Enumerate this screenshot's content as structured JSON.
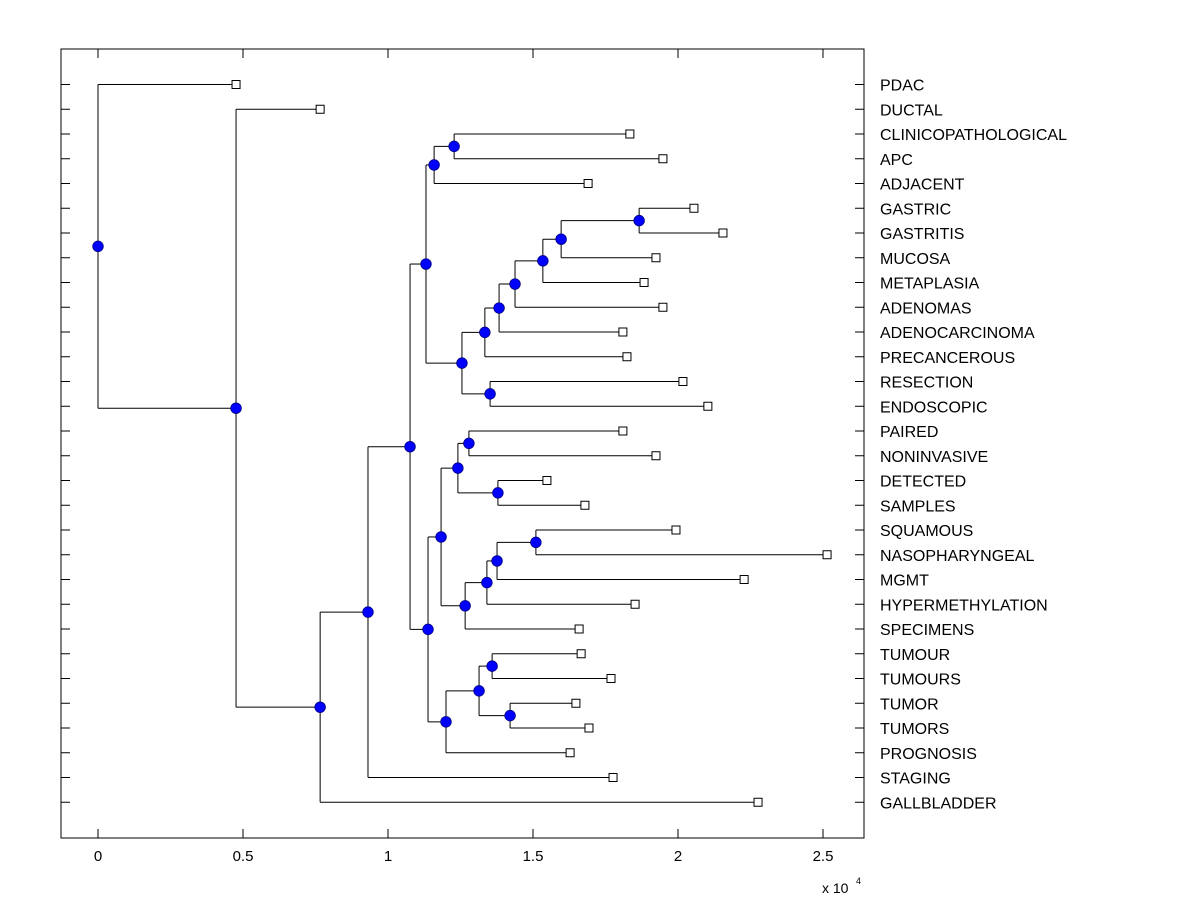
{
  "chart_data": {
    "type": "dendrogram",
    "title": "",
    "xlabel": "",
    "ylabel": "",
    "x_scale_label": "x 10",
    "x_scale_exponent": "4",
    "xlim": [
      -0.13,
      2.63
    ],
    "xticks": [
      0,
      0.5,
      1,
      1.5,
      2,
      2.5
    ],
    "xtick_labels": [
      "0",
      "0.5",
      "1",
      "1.5",
      "2",
      "2.5"
    ],
    "grid": false,
    "legend": "none",
    "colors": {
      "node_fill": "#0000ff",
      "node_stroke": "#000080",
      "line": "#000000",
      "leaf_fill": "#ffffff"
    },
    "leaves": [
      {
        "label": "PDAC",
        "value": 0.476
      },
      {
        "label": "DUCTAL",
        "value": 0.766
      },
      {
        "label": "CLINICOPATHOLOGICAL",
        "value": 1.834
      },
      {
        "label": "APC",
        "value": 1.948
      },
      {
        "label": "ADJACENT",
        "value": 1.69
      },
      {
        "label": "GASTRIC",
        "value": 2.055
      },
      {
        "label": "GASTRITIS",
        "value": 2.155
      },
      {
        "label": "MUCOSA",
        "value": 1.924
      },
      {
        "label": "METAPLASIA",
        "value": 1.883
      },
      {
        "label": "ADENOMAS",
        "value": 1.948
      },
      {
        "label": "ADENOCARCINOMA",
        "value": 1.81
      },
      {
        "label": "PRECANCEROUS",
        "value": 1.824
      },
      {
        "label": "RESECTION",
        "value": 2.017
      },
      {
        "label": "ENDOSCOPIC",
        "value": 2.103
      },
      {
        "label": "PAIRED",
        "value": 1.81
      },
      {
        "label": "NONINVASIVE",
        "value": 1.924
      },
      {
        "label": "DETECTED",
        "value": 1.548
      },
      {
        "label": "SAMPLES",
        "value": 1.679
      },
      {
        "label": "SQUAMOUS",
        "value": 1.993
      },
      {
        "label": "NASOPHARYNGEAL",
        "value": 2.514
      },
      {
        "label": "MGMT",
        "value": 2.228
      },
      {
        "label": "HYPERMETHYLATION",
        "value": 1.852
      },
      {
        "label": "SPECIMENS",
        "value": 1.659
      },
      {
        "label": "TUMOUR",
        "value": 1.666
      },
      {
        "label": "TUMOURS",
        "value": 1.769
      },
      {
        "label": "TUMOR",
        "value": 1.648
      },
      {
        "label": "TUMORS",
        "value": 1.693
      },
      {
        "label": "PROGNOSIS",
        "value": 1.628
      },
      {
        "label": "STAGING",
        "value": 1.776
      },
      {
        "label": "GALLBLADDER",
        "value": 2.276
      }
    ],
    "tree": {
      "value": 0.0,
      "children": [
        {
          "leaf": 0
        },
        {
          "value": 0.476,
          "children": [
            {
              "leaf": 1
            },
            {
              "value": 0.766,
              "children": [
                {
                  "value": 0.931,
                  "children": [
                    {
                      "value": 1.076,
                      "children": [
                        {
                          "value": 1.131,
                          "children": [
                            {
                              "value": 1.159,
                              "children": [
                                {
                                  "value": 1.228,
                                  "children": [
                                    {
                                      "leaf": 2
                                    },
                                    {
                                      "leaf": 3
                                    }
                                  ]
                                },
                                {
                                  "leaf": 4
                                }
                              ]
                            },
                            {
                              "value": 1.255,
                              "children": [
                                {
                                  "value": 1.334,
                                  "children": [
                                    {
                                      "value": 1.383,
                                      "children": [
                                        {
                                          "value": 1.438,
                                          "children": [
                                            {
                                              "value": 1.534,
                                              "children": [
                                                {
                                                  "value": 1.597,
                                                  "children": [
                                                    {
                                                      "value": 1.866,
                                                      "children": [
                                                        {
                                                          "leaf": 5
                                                        },
                                                        {
                                                          "leaf": 6
                                                        }
                                                      ]
                                                    },
                                                    {
                                                      "leaf": 7
                                                    }
                                                  ]
                                                },
                                                {
                                                  "leaf": 8
                                                }
                                              ]
                                            },
                                            {
                                              "leaf": 9
                                            }
                                          ]
                                        },
                                        {
                                          "leaf": 10
                                        }
                                      ]
                                    },
                                    {
                                      "leaf": 11
                                    }
                                  ]
                                },
                                {
                                  "value": 1.352,
                                  "children": [
                                    {
                                      "leaf": 12
                                    },
                                    {
                                      "leaf": 13
                                    }
                                  ]
                                }
                              ]
                            }
                          ]
                        },
                        {
                          "value": 1.138,
                          "children": [
                            {
                              "value": 1.183,
                              "children": [
                                {
                                  "value": 1.241,
                                  "children": [
                                    {
                                      "value": 1.279,
                                      "children": [
                                        {
                                          "leaf": 14
                                        },
                                        {
                                          "leaf": 15
                                        }
                                      ]
                                    },
                                    {
                                      "value": 1.379,
                                      "children": [
                                        {
                                          "leaf": 16
                                        },
                                        {
                                          "leaf": 17
                                        }
                                      ]
                                    }
                                  ]
                                },
                                {
                                  "value": 1.266,
                                  "children": [
                                    {
                                      "value": 1.341,
                                      "children": [
                                        {
                                          "value": 1.376,
                                          "children": [
                                            {
                                              "value": 1.51,
                                              "children": [
                                                {
                                                  "leaf": 18
                                                },
                                                {
                                                  "leaf": 19
                                                }
                                              ]
                                            },
                                            {
                                              "leaf": 20
                                            }
                                          ]
                                        },
                                        {
                                          "leaf": 21
                                        }
                                      ]
                                    },
                                    {
                                      "leaf": 22
                                    }
                                  ]
                                }
                              ]
                            },
                            {
                              "value": 1.2,
                              "children": [
                                {
                                  "value": 1.314,
                                  "children": [
                                    {
                                      "value": 1.359,
                                      "children": [
                                        {
                                          "leaf": 23
                                        },
                                        {
                                          "leaf": 24
                                        }
                                      ]
                                    },
                                    {
                                      "value": 1.421,
                                      "children": [
                                        {
                                          "leaf": 25
                                        },
                                        {
                                          "leaf": 26
                                        }
                                      ]
                                    }
                                  ]
                                },
                                {
                                  "leaf": 27
                                }
                              ]
                            }
                          ]
                        }
                      ]
                    },
                    {
                      "leaf": 28
                    }
                  ]
                },
                {
                  "leaf": 29
                }
              ]
            }
          ]
        }
      ]
    }
  }
}
